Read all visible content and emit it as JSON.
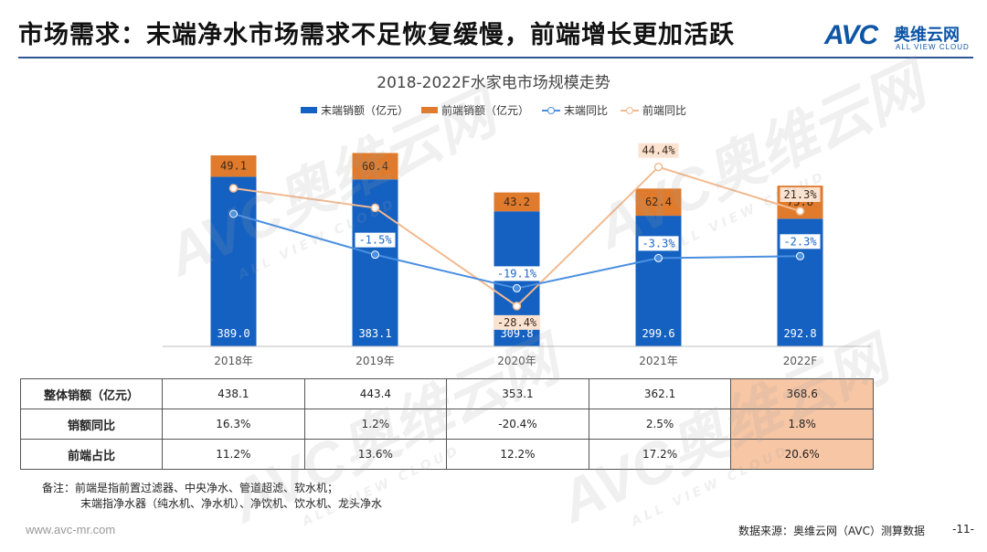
{
  "page": {
    "title": "市场需求：末端净水市场需求不足恢复缓慢，前端增长更加活跃",
    "logo_mark": "AVC",
    "logo_cn": "奥维云网",
    "logo_en": "ALL VIEW CLOUD",
    "watermark_cn": "奥维云网",
    "watermark_en": "ALL VIEW CLOUD"
  },
  "colors": {
    "terminal_bar": "#1461c2",
    "front_bar": "#e07a2c",
    "terminal_line": "#4a8fe0",
    "front_line": "#f2b98f",
    "title_rule": "#2f5597",
    "highlight": "#f7c6a5"
  },
  "chart_data": {
    "type": "bar",
    "title": "2018-2022F水家电市场规模走势",
    "categories": [
      "2018年",
      "2019年",
      "2020年",
      "2021年",
      "2022F"
    ],
    "stacked": true,
    "series": [
      {
        "name": "末端销额（亿元）",
        "kind": "bar",
        "values": [
          389.0,
          383.1,
          309.8,
          299.6,
          292.8
        ],
        "labels": [
          "389.0",
          "383.1",
          "309.8",
          "299.6",
          "292.8"
        ]
      },
      {
        "name": "前端销额（亿元）",
        "kind": "bar",
        "values": [
          49.1,
          60.4,
          43.2,
          62.4,
          75.8
        ],
        "labels": [
          "49.1",
          "60.4",
          "43.2",
          "62.4",
          "75.8"
        ]
      },
      {
        "name": "末端同比",
        "kind": "line",
        "values": [
          null,
          -1.5,
          -19.1,
          -3.3,
          -2.3
        ],
        "labels": [
          "",
          "-1.5%",
          "-19.1%",
          "-3.3%",
          "-2.3%"
        ]
      },
      {
        "name": "前端同比",
        "kind": "line",
        "values": [
          null,
          23.0,
          -28.4,
          44.4,
          21.3
        ],
        "labels": [
          "",
          "",
          "-28.4%",
          "44.4%",
          "21.3%"
        ]
      }
    ],
    "legend_position": "top",
    "grid": false
  },
  "table": {
    "rows": [
      {
        "label": "整体销额（亿元）",
        "values": [
          "438.1",
          "443.4",
          "353.1",
          "362.1",
          "368.6"
        ]
      },
      {
        "label": "销额同比",
        "values": [
          "16.3%",
          "1.2%",
          "-20.4%",
          "2.5%",
          "1.8%"
        ]
      },
      {
        "label": "前端占比",
        "values": [
          "11.2%",
          "13.6%",
          "12.2%",
          "17.2%",
          "20.6%"
        ]
      }
    ]
  },
  "note": {
    "prefix": "备注：",
    "line1": "前端是指前置过滤器、中央净水、管道超滤、软水机；",
    "line2": "末端指净水器（纯水机、净水机）、净饮机、饮水机、龙头净水"
  },
  "footer": {
    "url": "www.avc-mr.com",
    "source": "数据来源：奥维云网（AVC）测算数据",
    "page": "-11-"
  }
}
